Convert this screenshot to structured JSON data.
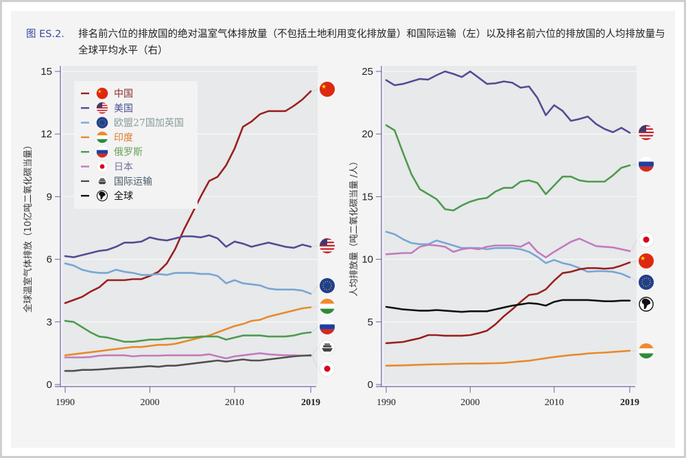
{
  "caption": {
    "figure_label": "图 ES.2.",
    "text": "排名前六位的排放国的绝对温室气体排放量（不包括土地利用变化排放量）和国际运输（左）以及排名前六位的排放国的人均排放量与全球平均水平（右）"
  },
  "colors": {
    "china": "#9b1f1f",
    "usa": "#574a94",
    "eu": "#78a6d4",
    "india": "#e88a2a",
    "russia": "#4e9a4e",
    "japan": "#c27abf",
    "shipping": "#505050",
    "world": "#111111"
  },
  "legend": [
    {
      "key": "china",
      "label": "中国",
      "icon": "china-flag-icon",
      "text_color": "#8a2a2a"
    },
    {
      "key": "usa",
      "label": "美国",
      "icon": "usa-flag-icon",
      "text_color": "#4a4f93"
    },
    {
      "key": "eu",
      "label": "欧盟27国加英国",
      "icon": "eu-flag-icon",
      "text_color": "#8a9a9a"
    },
    {
      "key": "india",
      "label": "印度",
      "icon": "india-flag-icon",
      "text_color": "#e07b2a"
    },
    {
      "key": "russia",
      "label": "俄罗斯",
      "icon": "russia-flag-icon",
      "text_color": "#6aa35a"
    },
    {
      "key": "japan",
      "label": "日本",
      "icon": "japan-flag-icon",
      "text_color": "#7a6aa0"
    },
    {
      "key": "shipping",
      "label": "国际运输",
      "icon": "ship-icon",
      "text_color": "#4a5a6a"
    },
    {
      "key": "world",
      "label": "全球",
      "icon": "globe-icon",
      "text_color": "#111111"
    }
  ],
  "chart_data": [
    {
      "type": "line",
      "title": "",
      "ylabel": "全球温室气体排放（10亿吨二氧化碳当量）",
      "xlabel": "",
      "ylim": [
        0,
        15
      ],
      "yticks": [
        "0",
        "3",
        "6",
        "9",
        "12",
        "15"
      ],
      "xlim": [
        1990,
        2019
      ],
      "xticks": [
        {
          "label": "1990",
          "value": 1990
        },
        {
          "label": "2000",
          "value": 2000
        },
        {
          "label": "2010",
          "value": 2010
        },
        {
          "label": "2019",
          "value": 2019,
          "bold": true
        }
      ],
      "grid": true,
      "legend_position": "top-left",
      "x": [
        1990,
        1991,
        1992,
        1993,
        1994,
        1995,
        1996,
        1997,
        1998,
        1999,
        2000,
        2001,
        2002,
        2003,
        2004,
        2005,
        2006,
        2007,
        2008,
        2009,
        2010,
        2011,
        2012,
        2013,
        2014,
        2015,
        2016,
        2017,
        2018,
        2019
      ],
      "series": [
        {
          "key": "china",
          "name": "中国",
          "values": [
            3.9,
            4.05,
            4.2,
            4.45,
            4.65,
            5.0,
            5.0,
            5.0,
            5.05,
            5.05,
            5.2,
            5.4,
            5.8,
            6.5,
            7.4,
            8.2,
            9.0,
            9.75,
            9.95,
            10.5,
            11.3,
            12.35,
            12.6,
            12.95,
            13.1,
            13.1,
            13.1,
            13.35,
            13.65,
            14.05
          ]
        },
        {
          "key": "usa",
          "name": "美国",
          "values": [
            6.15,
            6.1,
            6.2,
            6.3,
            6.4,
            6.45,
            6.6,
            6.8,
            6.8,
            6.85,
            7.05,
            6.95,
            6.9,
            7.0,
            7.1,
            7.1,
            7.05,
            7.15,
            7.0,
            6.6,
            6.85,
            6.75,
            6.6,
            6.7,
            6.8,
            6.7,
            6.6,
            6.55,
            6.7,
            6.6
          ]
        },
        {
          "key": "eu",
          "name": "欧盟27国加英国",
          "values": [
            5.8,
            5.7,
            5.5,
            5.4,
            5.35,
            5.35,
            5.5,
            5.4,
            5.35,
            5.25,
            5.25,
            5.3,
            5.25,
            5.35,
            5.35,
            5.35,
            5.3,
            5.3,
            5.2,
            4.85,
            5.0,
            4.85,
            4.8,
            4.75,
            4.6,
            4.55,
            4.55,
            4.55,
            4.5,
            4.35
          ]
        },
        {
          "key": "india",
          "name": "印度",
          "values": [
            1.4,
            1.45,
            1.5,
            1.55,
            1.6,
            1.65,
            1.7,
            1.75,
            1.8,
            1.8,
            1.85,
            1.9,
            1.9,
            1.95,
            2.05,
            2.15,
            2.25,
            2.35,
            2.5,
            2.65,
            2.8,
            2.9,
            3.05,
            3.1,
            3.25,
            3.35,
            3.45,
            3.55,
            3.65,
            3.7
          ]
        },
        {
          "key": "russia",
          "name": "俄罗斯",
          "values": [
            3.05,
            3.0,
            2.75,
            2.5,
            2.3,
            2.25,
            2.15,
            2.05,
            2.05,
            2.1,
            2.15,
            2.15,
            2.2,
            2.2,
            2.25,
            2.25,
            2.3,
            2.3,
            2.3,
            2.15,
            2.25,
            2.35,
            2.35,
            2.35,
            2.3,
            2.3,
            2.3,
            2.35,
            2.45,
            2.5
          ]
        },
        {
          "key": "japan",
          "name": "日本",
          "values": [
            1.3,
            1.3,
            1.3,
            1.32,
            1.38,
            1.4,
            1.4,
            1.4,
            1.35,
            1.38,
            1.38,
            1.38,
            1.4,
            1.4,
            1.4,
            1.4,
            1.4,
            1.45,
            1.35,
            1.25,
            1.35,
            1.4,
            1.45,
            1.5,
            1.45,
            1.42,
            1.4,
            1.4,
            1.38,
            1.38
          ]
        },
        {
          "key": "shipping",
          "name": "国际运输",
          "values": [
            0.65,
            0.65,
            0.7,
            0.7,
            0.72,
            0.75,
            0.78,
            0.8,
            0.82,
            0.85,
            0.88,
            0.85,
            0.9,
            0.9,
            0.95,
            1.0,
            1.05,
            1.1,
            1.15,
            1.1,
            1.15,
            1.2,
            1.15,
            1.15,
            1.2,
            1.25,
            1.3,
            1.35,
            1.38,
            1.4
          ]
        }
      ]
    },
    {
      "type": "line",
      "title": "",
      "ylabel": "人均排放量（吨二氧化碳当量 /人）",
      "xlabel": "",
      "ylim": [
        0,
        25
      ],
      "yticks": [
        "0",
        "5",
        "10",
        "15",
        "20",
        "25"
      ],
      "xlim": [
        1990,
        2019
      ],
      "xticks": [
        {
          "label": "1990",
          "value": 1990
        },
        {
          "label": "2000",
          "value": 2000
        },
        {
          "label": "2010",
          "value": 2010
        },
        {
          "label": "2019",
          "value": 2019,
          "bold": true
        }
      ],
      "grid": true,
      "x": [
        1990,
        1991,
        1992,
        1993,
        1994,
        1995,
        1996,
        1997,
        1998,
        1999,
        2000,
        2001,
        2002,
        2003,
        2004,
        2005,
        2006,
        2007,
        2008,
        2009,
        2010,
        2011,
        2012,
        2013,
        2014,
        2015,
        2016,
        2017,
        2018,
        2019
      ],
      "series": [
        {
          "key": "usa",
          "name": "美国",
          "values": [
            24.3,
            23.9,
            24.0,
            24.2,
            24.4,
            24.35,
            24.7,
            25.0,
            24.8,
            24.55,
            25.0,
            24.5,
            24.0,
            24.05,
            24.2,
            24.1,
            23.7,
            23.8,
            22.9,
            21.5,
            22.3,
            21.85,
            21.05,
            21.2,
            21.4,
            20.8,
            20.4,
            20.15,
            20.5,
            20.1
          ]
        },
        {
          "key": "russia",
          "name": "俄罗斯",
          "values": [
            20.7,
            20.3,
            18.5,
            16.8,
            15.6,
            15.2,
            14.8,
            14.0,
            13.9,
            14.3,
            14.6,
            14.8,
            14.9,
            15.4,
            15.7,
            15.7,
            16.2,
            16.3,
            16.1,
            15.2,
            15.9,
            16.6,
            16.6,
            16.3,
            16.2,
            16.2,
            16.2,
            16.7,
            17.3,
            17.5
          ]
        },
        {
          "key": "eu",
          "name": "欧盟27国加英国",
          "values": [
            12.2,
            12.0,
            11.6,
            11.3,
            11.2,
            11.2,
            11.5,
            11.3,
            11.1,
            10.9,
            10.9,
            10.9,
            10.8,
            10.9,
            10.9,
            10.9,
            10.8,
            10.6,
            10.2,
            9.7,
            9.95,
            9.7,
            9.55,
            9.3,
            9.0,
            9.05,
            9.05,
            9.0,
            8.85,
            8.55
          ]
        },
        {
          "key": "japan",
          "name": "日本",
          "values": [
            10.4,
            10.45,
            10.5,
            10.5,
            11.0,
            11.15,
            11.1,
            11.0,
            10.6,
            10.8,
            10.9,
            10.8,
            11.0,
            11.1,
            11.1,
            11.1,
            11.0,
            11.35,
            10.6,
            10.15,
            10.6,
            11.0,
            11.4,
            11.65,
            11.35,
            11.05,
            11.0,
            10.95,
            10.8,
            10.65
          ]
        },
        {
          "key": "china",
          "name": "中国",
          "values": [
            3.3,
            3.35,
            3.4,
            3.55,
            3.7,
            3.95,
            3.95,
            3.9,
            3.9,
            3.9,
            3.95,
            4.1,
            4.3,
            4.8,
            5.45,
            6.0,
            6.6,
            7.15,
            7.25,
            7.6,
            8.3,
            8.9,
            9.0,
            9.2,
            9.3,
            9.3,
            9.25,
            9.3,
            9.5,
            9.75
          ]
        },
        {
          "key": "world",
          "name": "全球",
          "values": [
            6.2,
            6.1,
            6.0,
            5.95,
            5.9,
            5.9,
            5.95,
            5.9,
            5.85,
            5.8,
            5.85,
            5.85,
            5.85,
            6.0,
            6.15,
            6.3,
            6.4,
            6.5,
            6.45,
            6.3,
            6.6,
            6.75,
            6.75,
            6.75,
            6.75,
            6.7,
            6.65,
            6.65,
            6.7,
            6.7
          ]
        },
        {
          "key": "india",
          "name": "印度",
          "values": [
            1.5,
            1.52,
            1.53,
            1.55,
            1.58,
            1.6,
            1.62,
            1.63,
            1.65,
            1.66,
            1.68,
            1.68,
            1.69,
            1.7,
            1.72,
            1.78,
            1.85,
            1.9,
            2.0,
            2.1,
            2.2,
            2.28,
            2.35,
            2.4,
            2.48,
            2.52,
            2.55,
            2.6,
            2.65,
            2.7
          ]
        }
      ]
    }
  ]
}
